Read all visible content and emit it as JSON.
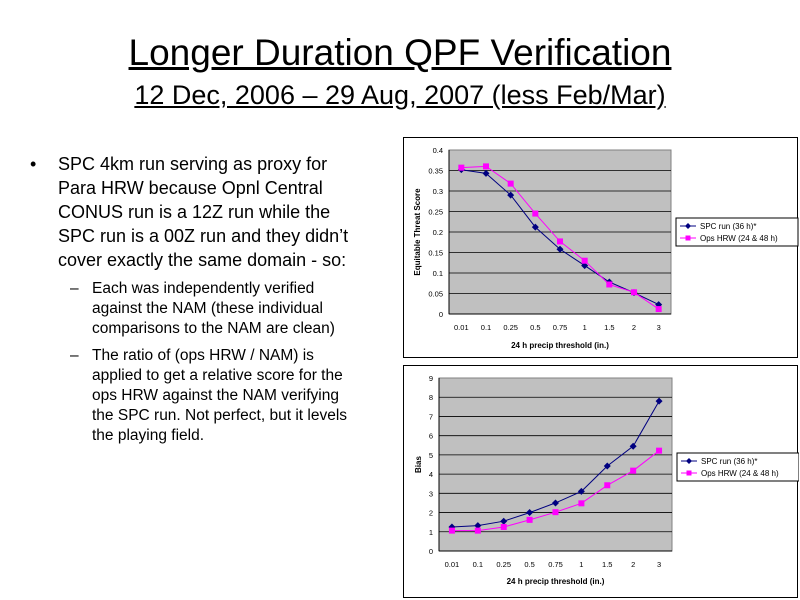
{
  "slide": {
    "title": "Longer Duration QPF Verification",
    "subtitle": "12 Dec, 2006 – 29 Aug, 2007 (less Feb/Mar)"
  },
  "bullets": {
    "main_symbol": "•",
    "main": [
      "SPC 4km run serving as proxy for",
      "Para HRW because Opnl Central",
      "CONUS run is a 12Z run while the",
      "SPC run is a 00Z run and they didn’t",
      "cover exactly the same domain - so:"
    ],
    "sub_symbol": "–",
    "sub": [
      {
        "lines": [
          "Each was independently verified",
          "against the NAM (these individual",
          "comparisons to the NAM are clean)"
        ]
      },
      {
        "lines": [
          "The ratio of (ops HRW / NAM) is",
          "applied to get a relative score for the",
          "ops HRW against the NAM verifying",
          "the SPC run.  Not perfect, but it levels",
          "the playing field."
        ]
      }
    ]
  },
  "chart_data": [
    {
      "type": "line",
      "categories": [
        "0.01",
        "0.1",
        "0.25",
        "0.5",
        "0.75",
        "1",
        "1.5",
        "2",
        "3"
      ],
      "xlabel": "24 h precip threshold (in.)",
      "ylabel": "Equitable Threat Score",
      "ylim": [
        0,
        0.4
      ],
      "yticks": [
        "0",
        "0.05",
        "0.1",
        "0.15",
        "0.2",
        "0.25",
        "0.3",
        "0.35",
        "0.4"
      ],
      "grid": true,
      "legend": "right",
      "plot_bg": "#c0c0c0",
      "series": [
        {
          "name": "SPC run (36 h)*",
          "color": "#000080",
          "marker": "diamond",
          "values": [
            0.352,
            0.343,
            0.29,
            0.212,
            0.158,
            0.118,
            0.078,
            0.052,
            0.023
          ]
        },
        {
          "name": "Ops HRW (24 & 48 h)",
          "color": "#ff00ff",
          "marker": "square",
          "values": [
            0.357,
            0.36,
            0.318,
            0.245,
            0.177,
            0.13,
            0.072,
            0.053,
            0.012
          ]
        }
      ]
    },
    {
      "type": "line",
      "categories": [
        "0.01",
        "0.1",
        "0.25",
        "0.5",
        "0.75",
        "1",
        "1.5",
        "2",
        "3"
      ],
      "xlabel": "24 h precip threshold (in.)",
      "ylabel": "Bias",
      "ylim": [
        0,
        9
      ],
      "yticks": [
        "0",
        "1",
        "2",
        "3",
        "4",
        "5",
        "6",
        "7",
        "8",
        "9"
      ],
      "grid": true,
      "legend": "right",
      "plot_bg": "#c0c0c0",
      "series": [
        {
          "name": "SPC run (36 h)*",
          "color": "#000080",
          "marker": "diamond",
          "values": [
            1.25,
            1.32,
            1.55,
            2.0,
            2.5,
            3.1,
            4.42,
            5.45,
            7.8
          ]
        },
        {
          "name": "Ops HRW (24 & 48 h)",
          "color": "#ff00ff",
          "marker": "square",
          "values": [
            1.06,
            1.06,
            1.25,
            1.62,
            2.02,
            2.48,
            3.42,
            4.18,
            5.22
          ]
        }
      ]
    }
  ]
}
